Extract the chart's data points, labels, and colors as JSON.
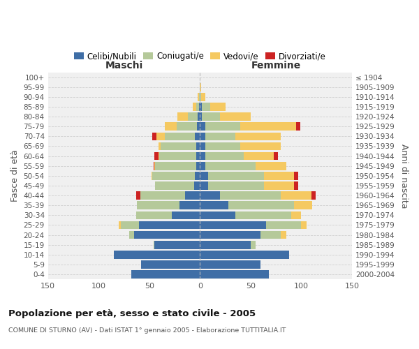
{
  "age_groups": [
    "0-4",
    "5-9",
    "10-14",
    "15-19",
    "20-24",
    "25-29",
    "30-34",
    "35-39",
    "40-44",
    "45-49",
    "50-54",
    "55-59",
    "60-64",
    "65-69",
    "70-74",
    "75-79",
    "80-84",
    "85-89",
    "90-94",
    "95-99",
    "100+"
  ],
  "birth_years": [
    "2000-2004",
    "1995-1999",
    "1990-1994",
    "1985-1989",
    "1980-1984",
    "1975-1979",
    "1970-1974",
    "1965-1969",
    "1960-1964",
    "1955-1959",
    "1950-1954",
    "1945-1949",
    "1940-1944",
    "1935-1939",
    "1930-1934",
    "1925-1929",
    "1920-1924",
    "1915-1919",
    "1910-1914",
    "1905-1909",
    "≤ 1904"
  ],
  "male_celibe": [
    68,
    58,
    85,
    45,
    65,
    60,
    28,
    20,
    15,
    6,
    5,
    4,
    4,
    4,
    5,
    3,
    2,
    1,
    0,
    0,
    0
  ],
  "male_coniugato": [
    0,
    0,
    0,
    1,
    5,
    18,
    35,
    42,
    44,
    38,
    42,
    40,
    36,
    35,
    30,
    20,
    10,
    3,
    1,
    0,
    0
  ],
  "male_vedovo": [
    0,
    0,
    0,
    0,
    0,
    2,
    0,
    0,
    0,
    0,
    1,
    1,
    1,
    2,
    8,
    12,
    10,
    3,
    1,
    0,
    0
  ],
  "male_divorziato": [
    0,
    0,
    0,
    0,
    0,
    0,
    0,
    0,
    4,
    0,
    0,
    1,
    4,
    0,
    4,
    0,
    0,
    0,
    0,
    0,
    0
  ],
  "female_celibe": [
    68,
    60,
    88,
    50,
    60,
    65,
    35,
    28,
    20,
    8,
    8,
    5,
    5,
    5,
    5,
    5,
    2,
    2,
    0,
    0,
    0
  ],
  "female_coniugata": [
    0,
    0,
    0,
    5,
    20,
    35,
    55,
    65,
    60,
    55,
    55,
    50,
    38,
    35,
    30,
    35,
    18,
    8,
    1,
    0,
    0
  ],
  "female_vedova": [
    0,
    0,
    0,
    0,
    5,
    5,
    10,
    18,
    30,
    30,
    30,
    30,
    30,
    40,
    45,
    55,
    30,
    15,
    4,
    1,
    0
  ],
  "female_divorziata": [
    0,
    0,
    0,
    0,
    0,
    0,
    0,
    0,
    4,
    4,
    4,
    0,
    4,
    0,
    0,
    4,
    0,
    0,
    0,
    0,
    0
  ],
  "colors": {
    "celibe": "#3f6ea6",
    "coniugato": "#b5c99a",
    "vedovo": "#f5c961",
    "divorziato": "#cc2222"
  },
  "title": "Popolazione per età, sesso e stato civile - 2005",
  "subtitle": "COMUNE DI STURNO (AV) - Dati ISTAT 1° gennaio 2005 - Elaborazione TUTTITALIA.IT",
  "label_maschi": "Maschi",
  "label_femmine": "Femmine",
  "ylabel_left": "Fasce di età",
  "ylabel_right": "Anni di nascita",
  "legend_labels": [
    "Celibi/Nubili",
    "Coniugati/e",
    "Vedovi/e",
    "Divorziati/e"
  ],
  "xlim": 150,
  "bg_color": "#ffffff",
  "plot_bg": "#f0f0f0",
  "grid_color": "#cccccc"
}
